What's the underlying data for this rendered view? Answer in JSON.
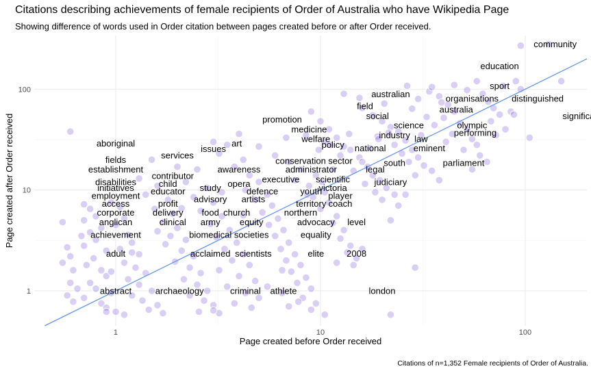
{
  "chart_data": {
    "type": "scatter",
    "title": "Citations describing achievements of female recipients of Order of Australia who have Wikipedia Page",
    "subtitle": "Showing difference of words used in Order citation between pages created before or after Order received.",
    "caption": "Citations of n=1,352 Female recipients of Order of Australia.",
    "xlabel": "Page created before Order received",
    "ylabel": "Page created after Order received",
    "x_scale": "log10",
    "y_scale": "log10",
    "xlim": [
      0.4,
      200
    ],
    "ylim": [
      0.45,
      340
    ],
    "x_ticks": [
      {
        "value": 1,
        "label": "1"
      },
      {
        "value": 10,
        "label": "10"
      },
      {
        "value": 100,
        "label": "100"
      }
    ],
    "y_ticks": [
      {
        "value": 1,
        "label": "1"
      },
      {
        "value": 10,
        "label": "10"
      },
      {
        "value": 100,
        "label": "100"
      }
    ],
    "grid": true,
    "point_color": "#9b7fe0",
    "line_color": "#6495ed",
    "reference_line": {
      "type": "identity",
      "label": ""
    },
    "points": [
      [
        0.6,
        38
      ],
      [
        0.55,
        4.8
      ],
      [
        0.58,
        2.7
      ],
      [
        0.6,
        2.2
      ],
      [
        0.62,
        1.6
      ],
      [
        0.55,
        1.9
      ],
      [
        0.6,
        1.2
      ],
      [
        0.65,
        1.05
      ],
      [
        0.58,
        0.9
      ],
      [
        0.62,
        0.78
      ],
      [
        0.7,
        7.2
      ],
      [
        0.75,
        6.5
      ],
      [
        0.8,
        5.5
      ],
      [
        0.7,
        5
      ],
      [
        0.85,
        4.2
      ],
      [
        0.75,
        3.8
      ],
      [
        0.8,
        3.2
      ],
      [
        0.7,
        2.8
      ],
      [
        0.9,
        2.5
      ],
      [
        0.78,
        2.1
      ],
      [
        0.72,
        1.8
      ],
      [
        0.85,
        1.6
      ],
      [
        0.9,
        1.4
      ],
      [
        0.75,
        1.2
      ],
      [
        0.8,
        1.05
      ],
      [
        0.95,
        0.95
      ],
      [
        0.7,
        0.85
      ],
      [
        0.85,
        0.75
      ],
      [
        0.9,
        0.68
      ],
      [
        1.0,
        0.62
      ],
      [
        0.95,
        7.5
      ],
      [
        1.05,
        6.8
      ],
      [
        1.1,
        5.2
      ],
      [
        1.0,
        4.5
      ],
      [
        1.15,
        3.6
      ],
      [
        1.2,
        3.0
      ],
      [
        1.05,
        2.6
      ],
      [
        1.3,
        2.3
      ],
      [
        1.1,
        1.9
      ],
      [
        1.25,
        1.7
      ],
      [
        1.4,
        1.5
      ],
      [
        1.15,
        1.3
      ],
      [
        1.3,
        1.15
      ],
      [
        1.5,
        1.0
      ],
      [
        1.2,
        0.9
      ],
      [
        1.35,
        0.8
      ],
      [
        1.6,
        0.72
      ],
      [
        1.45,
        0.65
      ],
      [
        1.1,
        0.58
      ],
      [
        1.7,
        0.6
      ],
      [
        1.5,
        20
      ],
      [
        1.3,
        13
      ],
      [
        1.6,
        11
      ],
      [
        1.4,
        9
      ],
      [
        1.8,
        8
      ],
      [
        1.55,
        6.5
      ],
      [
        1.9,
        5.8
      ],
      [
        1.7,
        4.8
      ],
      [
        2.0,
        4.2
      ],
      [
        1.85,
        3.5
      ],
      [
        2.2,
        3.2
      ],
      [
        1.75,
        2.9
      ],
      [
        2.1,
        2.5
      ],
      [
        2.4,
        2.2
      ],
      [
        1.95,
        1.95
      ],
      [
        2.3,
        1.7
      ],
      [
        2.6,
        1.5
      ],
      [
        2.15,
        1.3
      ],
      [
        2.5,
        1.15
      ],
      [
        2.8,
        1.0
      ],
      [
        2.3,
        0.9
      ],
      [
        2.7,
        0.8
      ],
      [
        3.0,
        0.72
      ],
      [
        2.55,
        0.62
      ],
      [
        3.2,
        0.6
      ],
      [
        2.0,
        17
      ],
      [
        2.5,
        16
      ],
      [
        2.2,
        12
      ],
      [
        2.8,
        10.5
      ],
      [
        2.4,
        8.5
      ],
      [
        3.0,
        7.5
      ],
      [
        2.6,
        6.2
      ],
      [
        3.3,
        5.5
      ],
      [
        2.9,
        4.6
      ],
      [
        3.6,
        4.0
      ],
      [
        3.1,
        3.4
      ],
      [
        3.9,
        3.0
      ],
      [
        3.4,
        2.6
      ],
      [
        4.2,
        2.3
      ],
      [
        3.7,
        2.0
      ],
      [
        4.5,
        1.8
      ],
      [
        3.2,
        1.6
      ],
      [
        4.0,
        1.4
      ],
      [
        4.8,
        1.25
      ],
      [
        3.5,
        1.1
      ],
      [
        4.3,
        0.95
      ],
      [
        5.0,
        0.85
      ],
      [
        3.8,
        0.75
      ],
      [
        4.6,
        0.68
      ],
      [
        3.0,
        0.64
      ],
      [
        3.0,
        30
      ],
      [
        3.5,
        28
      ],
      [
        4.0,
        36
      ],
      [
        3.2,
        23
      ],
      [
        4.2,
        20
      ],
      [
        3.8,
        17
      ],
      [
        4.5,
        14
      ],
      [
        5.0,
        12
      ],
      [
        4.3,
        10
      ],
      [
        5.5,
        9
      ],
      [
        4.8,
        8
      ],
      [
        5.8,
        7
      ],
      [
        5.2,
        6
      ],
      [
        6.2,
        5.2
      ],
      [
        5.6,
        4.5
      ],
      [
        6.6,
        4.0
      ],
      [
        6.0,
        3.5
      ],
      [
        7.0,
        3.0
      ],
      [
        6.4,
        2.6
      ],
      [
        7.5,
        2.3
      ],
      [
        6.8,
        2.0
      ],
      [
        8.0,
        1.8
      ],
      [
        7.2,
        1.55
      ],
      [
        8.5,
        1.35
      ],
      [
        7.7,
        1.2
      ],
      [
        9.0,
        1.05
      ],
      [
        6.5,
        0.95
      ],
      [
        8.2,
        0.85
      ],
      [
        9.5,
        0.75
      ],
      [
        7.0,
        0.7
      ],
      [
        9.0,
        0.65
      ],
      [
        10.5,
        0.58
      ],
      [
        6.0,
        22
      ],
      [
        7.0,
        19
      ],
      [
        8.0,
        16
      ],
      [
        9.5,
        14
      ],
      [
        7.5,
        12.5
      ],
      [
        8.8,
        11
      ],
      [
        10.5,
        9.5
      ],
      [
        9.2,
        8.5
      ],
      [
        11.0,
        7.5
      ],
      [
        10.0,
        6.5
      ],
      [
        12.0,
        5.5
      ],
      [
        11.5,
        4.7
      ],
      [
        13.0,
        4.0
      ],
      [
        12.5,
        3.3
      ],
      [
        14.0,
        2.8
      ],
      [
        13.5,
        2.4
      ],
      [
        15.0,
        2.1
      ],
      [
        14.5,
        1.8
      ],
      [
        9.0,
        60
      ],
      [
        10.0,
        48
      ],
      [
        11.0,
        40
      ],
      [
        8.5,
        35
      ],
      [
        12.0,
        33
      ],
      [
        10.5,
        30
      ],
      [
        13.0,
        27
      ],
      [
        14.0,
        25
      ],
      [
        12.5,
        22
      ],
      [
        15.5,
        21
      ],
      [
        16.0,
        19
      ],
      [
        17.0,
        17
      ],
      [
        14.5,
        15.5
      ],
      [
        18.0,
        14
      ],
      [
        19.5,
        12.5
      ],
      [
        16.5,
        11.5
      ],
      [
        21.0,
        10.5
      ],
      [
        18.5,
        9.5
      ],
      [
        23.0,
        9
      ],
      [
        20.0,
        8
      ],
      [
        13.0,
        90
      ],
      [
        16.0,
        65
      ],
      [
        18.0,
        55
      ],
      [
        20.0,
        48
      ],
      [
        22.0,
        42
      ],
      [
        24.0,
        38
      ],
      [
        19.0,
        34
      ],
      [
        26.0,
        31
      ],
      [
        23.0,
        28
      ],
      [
        28.0,
        25
      ],
      [
        25.0,
        23
      ],
      [
        30.0,
        21
      ],
      [
        27.0,
        19
      ],
      [
        32.0,
        17.5
      ],
      [
        35.0,
        15.5
      ],
      [
        29.0,
        14
      ],
      [
        38.0,
        12.5
      ],
      [
        26.0,
        9
      ],
      [
        24.0,
        7
      ],
      [
        22.0,
        5
      ],
      [
        30.0,
        80
      ],
      [
        34.0,
        95
      ],
      [
        38.0,
        85
      ],
      [
        42.0,
        70
      ],
      [
        45.0,
        60
      ],
      [
        40.0,
        52
      ],
      [
        48.0,
        46
      ],
      [
        52.0,
        40
      ],
      [
        44.0,
        36
      ],
      [
        55.0,
        32
      ],
      [
        58.0,
        28
      ],
      [
        50.0,
        25
      ],
      [
        60.0,
        22
      ],
      [
        65.0,
        19
      ],
      [
        55.0,
        16
      ],
      [
        35.0,
        105
      ],
      [
        45.0,
        110
      ],
      [
        52.0,
        98
      ],
      [
        58.0,
        120
      ],
      [
        66.0,
        75
      ],
      [
        70.0,
        65
      ],
      [
        75.0,
        56
      ],
      [
        68.0,
        48
      ],
      [
        80.0,
        40
      ],
      [
        72.0,
        35
      ],
      [
        85.0,
        60
      ],
      [
        90.0,
        120
      ],
      [
        95.0,
        270
      ],
      [
        130.0,
        280
      ],
      [
        150.0,
        120
      ],
      [
        105.0,
        33
      ],
      [
        95.0,
        100
      ],
      [
        29.0,
        1.7
      ],
      [
        22.0,
        0.58
      ],
      [
        12.0,
        1.9
      ],
      [
        16.0,
        2.6
      ],
      [
        5.5,
        1.1
      ],
      [
        7.8,
        0.78
      ],
      [
        6.5,
        1.6
      ],
      [
        4.2,
        5.6
      ],
      [
        3.3,
        9.5
      ],
      [
        2.1,
        6.6
      ],
      [
        1.6,
        3.9
      ],
      [
        1.2,
        2.4
      ],
      [
        0.95,
        1.55
      ],
      [
        5.0,
        27
      ],
      [
        6.8,
        33
      ],
      [
        9.8,
        25
      ],
      [
        11.5,
        16
      ],
      [
        8.6,
        9
      ],
      [
        10.2,
        12
      ],
      [
        11.2,
        28
      ],
      [
        13.8,
        36
      ],
      [
        17.5,
        26
      ],
      [
        19.2,
        32
      ],
      [
        21.5,
        37
      ],
      [
        31.0,
        35
      ],
      [
        36.0,
        44
      ],
      [
        41.0,
        30
      ],
      [
        28.0,
        64
      ],
      [
        33.0,
        53
      ],
      [
        39.0,
        74
      ],
      [
        62.0,
        90
      ],
      [
        78.0,
        108
      ],
      [
        88.0,
        56
      ],
      [
        26.5,
        108
      ],
      [
        15.5,
        82
      ],
      [
        20.5,
        72
      ],
      [
        0.68,
        3.5
      ],
      [
        0.9,
        0.62
      ]
    ],
    "labels": [
      {
        "text": "community",
        "x": 140,
        "y": 280
      },
      {
        "text": "education",
        "x": 75,
        "y": 170
      },
      {
        "text": "sport",
        "x": 75,
        "y": 108
      },
      {
        "text": "australian",
        "x": 22,
        "y": 89
      },
      {
        "text": "organisations",
        "x": 55,
        "y": 81
      },
      {
        "text": "distinguished",
        "x": 115,
        "y": 81
      },
      {
        "text": "field",
        "x": 16.5,
        "y": 68
      },
      {
        "text": "australia",
        "x": 46,
        "y": 63
      },
      {
        "text": "social",
        "x": 19,
        "y": 54
      },
      {
        "text": "significant",
        "x": 190,
        "y": 54
      },
      {
        "text": "promotion",
        "x": 6.5,
        "y": 50
      },
      {
        "text": "science",
        "x": 27,
        "y": 44
      },
      {
        "text": "olympic",
        "x": 55,
        "y": 44
      },
      {
        "text": "medicine",
        "x": 8.8,
        "y": 40
      },
      {
        "text": "performing",
        "x": 57,
        "y": 37
      },
      {
        "text": "industry",
        "x": 23,
        "y": 35
      },
      {
        "text": "welfare",
        "x": 9.5,
        "y": 32
      },
      {
        "text": "law",
        "x": 31,
        "y": 32
      },
      {
        "text": "aboriginal",
        "x": 1.0,
        "y": 29
      },
      {
        "text": "art",
        "x": 3.9,
        "y": 29
      },
      {
        "text": "policy",
        "x": 11.5,
        "y": 28
      },
      {
        "text": "national",
        "x": 17.5,
        "y": 26
      },
      {
        "text": "eminent",
        "x": 34,
        "y": 26
      },
      {
        "text": "issues",
        "x": 3.0,
        "y": 25.5
      },
      {
        "text": "services",
        "x": 2.0,
        "y": 22
      },
      {
        "text": "fields",
        "x": 1.0,
        "y": 20
      },
      {
        "text": "conservation",
        "x": 8.0,
        "y": 19.5
      },
      {
        "text": "sector",
        "x": 12.5,
        "y": 19.5
      },
      {
        "text": "south",
        "x": 23,
        "y": 18.5
      },
      {
        "text": "parliament",
        "x": 50,
        "y": 18.5
      },
      {
        "text": "establishment",
        "x": 1.0,
        "y": 16
      },
      {
        "text": "awareness",
        "x": 4.0,
        "y": 16
      },
      {
        "text": "administrator",
        "x": 9.0,
        "y": 16
      },
      {
        "text": "legal",
        "x": 18.5,
        "y": 16
      },
      {
        "text": "contributor",
        "x": 1.9,
        "y": 13.8
      },
      {
        "text": "executive",
        "x": 6.4,
        "y": 12.8
      },
      {
        "text": "scientific",
        "x": 11.5,
        "y": 12.8
      },
      {
        "text": "disabilities",
        "x": 1.0,
        "y": 12
      },
      {
        "text": "child",
        "x": 1.8,
        "y": 11.5
      },
      {
        "text": "opera",
        "x": 4.0,
        "y": 11.5
      },
      {
        "text": "judiciary",
        "x": 22,
        "y": 12
      },
      {
        "text": "initiatives",
        "x": 1.0,
        "y": 10.5
      },
      {
        "text": "study",
        "x": 2.9,
        "y": 10.5
      },
      {
        "text": "victoria",
        "x": 11.5,
        "y": 10.5
      },
      {
        "text": "educator",
        "x": 1.8,
        "y": 9.7
      },
      {
        "text": "defence",
        "x": 5.2,
        "y": 9.7
      },
      {
        "text": "youth",
        "x": 9.0,
        "y": 9.7
      },
      {
        "text": "employment",
        "x": 1.0,
        "y": 8.8
      },
      {
        "text": "player",
        "x": 12.5,
        "y": 8.8
      },
      {
        "text": "advisory",
        "x": 2.9,
        "y": 8.1
      },
      {
        "text": "artists",
        "x": 4.7,
        "y": 8.1
      },
      {
        "text": "access",
        "x": 1.0,
        "y": 7.3
      },
      {
        "text": "profit",
        "x": 1.8,
        "y": 7.3
      },
      {
        "text": "territory",
        "x": 9.0,
        "y": 7.3
      },
      {
        "text": "coach",
        "x": 12.5,
        "y": 7.3
      },
      {
        "text": "corporate",
        "x": 1.0,
        "y": 6.0
      },
      {
        "text": "delivery",
        "x": 1.8,
        "y": 6.0
      },
      {
        "text": "food",
        "x": 2.9,
        "y": 6.0
      },
      {
        "text": "church",
        "x": 3.9,
        "y": 6.0
      },
      {
        "text": "northern",
        "x": 8.0,
        "y": 6.0
      },
      {
        "text": "anglican",
        "x": 1.0,
        "y": 4.8
      },
      {
        "text": "clinical",
        "x": 1.9,
        "y": 4.8
      },
      {
        "text": "army",
        "x": 2.9,
        "y": 4.8
      },
      {
        "text": "equity",
        "x": 4.6,
        "y": 4.8
      },
      {
        "text": "advocacy",
        "x": 9.5,
        "y": 4.8
      },
      {
        "text": "level",
        "x": 15,
        "y": 4.8
      },
      {
        "text": "achievement",
        "x": 1.0,
        "y": 3.6
      },
      {
        "text": "biomedical",
        "x": 2.9,
        "y": 3.6
      },
      {
        "text": "societies",
        "x": 4.6,
        "y": 3.6
      },
      {
        "text": "equality",
        "x": 9.5,
        "y": 3.6
      },
      {
        "text": "adult",
        "x": 1.0,
        "y": 2.35
      },
      {
        "text": "acclaimed",
        "x": 2.9,
        "y": 2.35
      },
      {
        "text": "scientists",
        "x": 4.7,
        "y": 2.35
      },
      {
        "text": "elite",
        "x": 9.5,
        "y": 2.35
      },
      {
        "text": "2008",
        "x": 15,
        "y": 2.35
      },
      {
        "text": "abstract",
        "x": 1.0,
        "y": 1.0
      },
      {
        "text": "archaeology",
        "x": 2.05,
        "y": 1.0
      },
      {
        "text": "criminal",
        "x": 4.3,
        "y": 1.0
      },
      {
        "text": "athlete",
        "x": 6.6,
        "y": 1.0
      },
      {
        "text": "london",
        "x": 20,
        "y": 1.0
      }
    ]
  }
}
